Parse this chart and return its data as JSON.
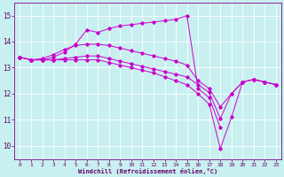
{
  "xlabel": "Windchill (Refroidissement éolien,°C)",
  "ylabel": "",
  "bg_color": "#c8f0f0",
  "line_color": "#cc00cc",
  "xlim": [
    -0.5,
    23.5
  ],
  "ylim": [
    9.5,
    15.5
  ],
  "xticks": [
    0,
    1,
    2,
    3,
    4,
    5,
    6,
    7,
    8,
    9,
    10,
    11,
    12,
    13,
    14,
    15,
    16,
    17,
    18,
    19,
    20,
    21,
    22,
    23
  ],
  "yticks": [
    10,
    11,
    12,
    13,
    14,
    15
  ],
  "lines": [
    {
      "x": [
        0,
        1,
        2,
        3,
        4,
        5,
        6,
        7,
        8,
        9,
        10,
        11,
        12,
        13,
        14,
        15,
        16,
        17,
        18
      ],
      "y": [
        13.4,
        13.3,
        13.3,
        13.4,
        13.6,
        13.9,
        14.45,
        14.35,
        14.5,
        14.6,
        14.65,
        14.7,
        14.75,
        14.8,
        14.85,
        15.0,
        12.2,
        11.85,
        10.7
      ]
    },
    {
      "x": [
        0,
        1,
        2,
        3,
        4,
        5,
        6,
        7,
        8,
        9,
        10,
        11,
        12,
        13,
        14,
        15,
        16,
        17,
        18,
        19,
        20,
        21,
        22,
        23
      ],
      "y": [
        13.4,
        13.3,
        13.35,
        13.5,
        13.7,
        13.85,
        13.9,
        13.9,
        13.85,
        13.75,
        13.65,
        13.55,
        13.45,
        13.35,
        13.25,
        13.1,
        12.5,
        12.2,
        11.5,
        12.0,
        12.45,
        12.55,
        12.45,
        12.35
      ]
    },
    {
      "x": [
        0,
        1,
        2,
        3,
        4,
        5,
        6,
        7,
        8,
        9,
        10,
        11,
        12,
        13,
        14,
        15,
        16,
        17,
        18,
        19,
        20,
        21,
        22,
        23
      ],
      "y": [
        13.4,
        13.3,
        13.3,
        13.3,
        13.35,
        13.4,
        13.45,
        13.45,
        13.35,
        13.25,
        13.15,
        13.05,
        12.95,
        12.85,
        12.75,
        12.65,
        12.35,
        12.05,
        11.05,
        12.0,
        12.45,
        12.55,
        12.45,
        12.35
      ]
    },
    {
      "x": [
        0,
        1,
        2,
        3,
        4,
        5,
        6,
        7,
        8,
        9,
        10,
        11,
        12,
        13,
        14,
        15,
        16,
        17,
        18,
        19,
        20,
        21,
        22,
        23
      ],
      "y": [
        13.4,
        13.3,
        13.3,
        13.3,
        13.3,
        13.3,
        13.3,
        13.3,
        13.2,
        13.1,
        13.0,
        12.9,
        12.8,
        12.65,
        12.5,
        12.35,
        12.0,
        11.6,
        9.9,
        11.1,
        12.45,
        12.55,
        12.45,
        12.35
      ]
    }
  ]
}
